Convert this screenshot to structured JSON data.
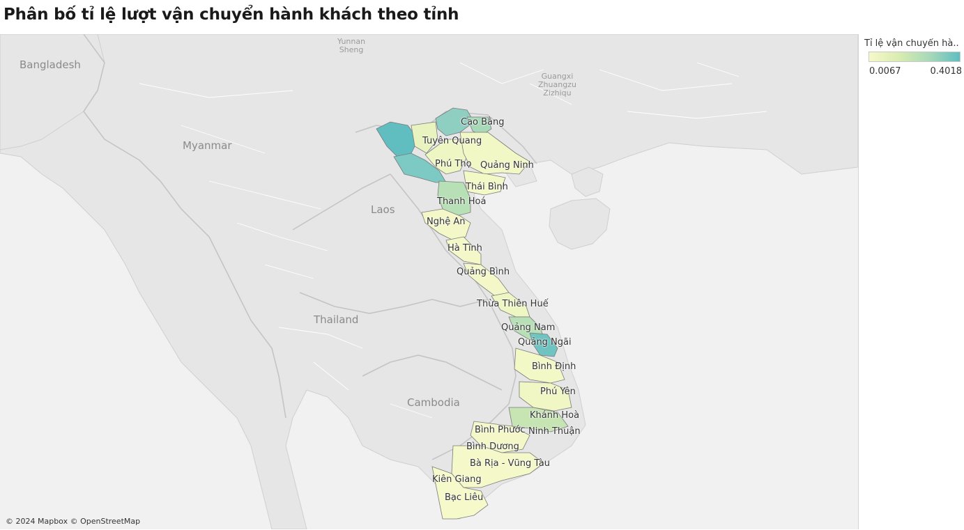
{
  "title": "Phân bố tỉ lệ lượt vận chuyển hành khách theo tỉnh",
  "legend": {
    "title": "Tỉ lệ vận chuyển hà..",
    "min_label": "0.0067",
    "max_label": "0.4018",
    "min_value": 0.0067,
    "max_value": 0.4018,
    "color_low": "#f6f9c9",
    "color_high": "#60bec1"
  },
  "map_labels": {
    "bangladesh": "Bangladesh",
    "myanmar": "Myanmar",
    "laos": "Laos",
    "thailand": "Thailand",
    "cambodia": "Cambodia",
    "yunnan": "Yunnan\nSheng",
    "guangxi": "Guangxi\nZhuangzu\nZizhiqu"
  },
  "provinces": [
    {
      "name": "Cao Bằng"
    },
    {
      "name": "Tuyên Quang"
    },
    {
      "name": "Phú Thọ"
    },
    {
      "name": "Quảng Ninh"
    },
    {
      "name": "Thái Bình"
    },
    {
      "name": "Thanh Hoá"
    },
    {
      "name": "Nghệ An"
    },
    {
      "name": "Hà Tĩnh"
    },
    {
      "name": "Quảng Bình"
    },
    {
      "name": "Thừa Thiên Huế"
    },
    {
      "name": "Quảng Nam"
    },
    {
      "name": "Quảng Ngãi"
    },
    {
      "name": "Bình Định"
    },
    {
      "name": "Phú Yên"
    },
    {
      "name": "Khánh Hoà"
    },
    {
      "name": "Bình Phước"
    },
    {
      "name": "Ninh Thuận"
    },
    {
      "name": "Bình Dương"
    },
    {
      "name": "Bà Rịa - Vũng Tàu"
    },
    {
      "name": "Kiên Giang"
    },
    {
      "name": "Bạc Liêu"
    }
  ],
  "attribution": "© 2024 Mapbox © OpenStreetMap"
}
